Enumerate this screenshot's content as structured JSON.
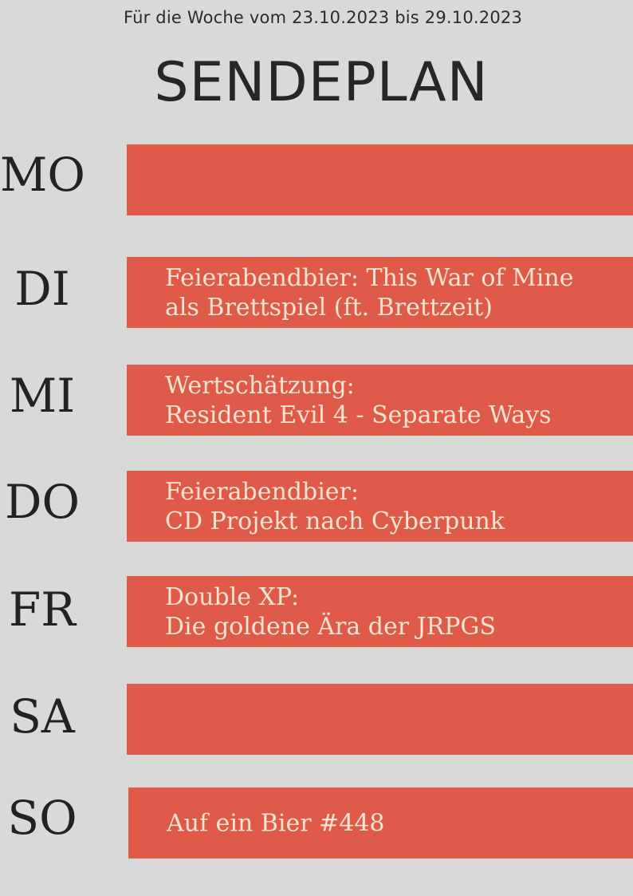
{
  "header": {
    "week_range": "Für die Woche vom 23.10.2023 bis 29.10.2023",
    "title": "SENDEPLAN"
  },
  "colors": {
    "background": "#d9d9d9",
    "bar": "#e05a49",
    "bar_text": "#f4e4d3",
    "label_text": "#222222"
  },
  "schedule": [
    {
      "day": "MO",
      "line1": "",
      "line2": ""
    },
    {
      "day": "DI",
      "line1": "Feierabendbier: This War of Mine",
      "line2": "als Brettspiel (ft. Brettzeit)"
    },
    {
      "day": "MI",
      "line1": "Wertschätzung:",
      "line2": "Resident Evil 4 - Separate Ways"
    },
    {
      "day": "DO",
      "line1": "Feierabendbier:",
      "line2": "CD Projekt nach Cyberpunk"
    },
    {
      "day": "FR",
      "line1": "Double XP:",
      "line2": "Die goldene Ära der JRPGS"
    },
    {
      "day": "SA",
      "line1": "",
      "line2": ""
    },
    {
      "day": "SO",
      "line1": "Auf ein Bier #448",
      "line2": ""
    }
  ]
}
